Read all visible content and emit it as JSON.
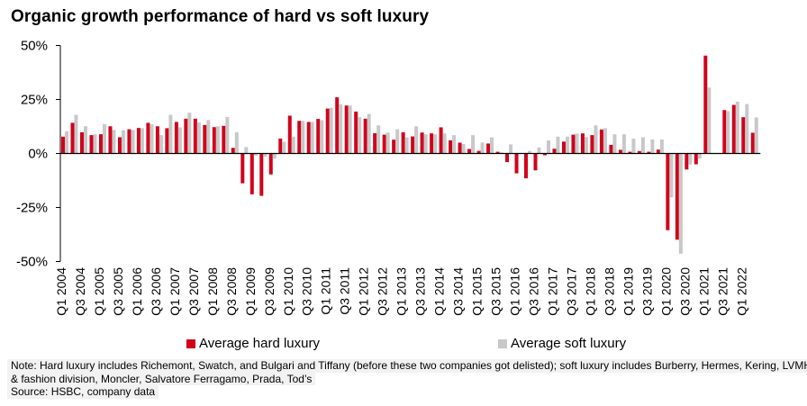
{
  "title": "Organic growth performance of hard vs soft luxury",
  "chart_data": {
    "type": "bar",
    "title": "Organic growth performance of hard vs soft luxury",
    "xlabel": "",
    "ylabel": "",
    "ylim": [
      -50,
      50
    ],
    "y_ticks": [
      50,
      25,
      0,
      -25,
      -50
    ],
    "y_tick_labels": [
      "50%",
      "25%",
      "0%",
      "-25%",
      "-50%"
    ],
    "y_unit": "%",
    "grid": false,
    "legend_position": "bottom",
    "categories": [
      "Q1 2004",
      "Q2 2004",
      "Q3 2004",
      "Q4 2004",
      "Q1 2005",
      "Q2 2005",
      "Q3 2005",
      "Q4 2005",
      "Q1 2006",
      "Q2 2006",
      "Q3 2006",
      "Q4 2006",
      "Q1 2007",
      "Q2 2007",
      "Q3 2007",
      "Q4 2007",
      "Q1 2008",
      "Q2 2008",
      "Q3 2008",
      "Q4 2008",
      "Q1 2009",
      "Q2 2009",
      "Q3 2009",
      "Q4 2009",
      "Q1 2010",
      "Q2 2010",
      "Q3 2010",
      "Q4 2010",
      "Q1 2011",
      "Q2 2011",
      "Q3 2011",
      "Q4 2011",
      "Q1 2012",
      "Q2 2012",
      "Q3 2012",
      "Q4 2012",
      "Q1 2013",
      "Q2 2013",
      "Q3 2013",
      "Q4 2013",
      "Q1 2014",
      "Q2 2014",
      "Q3 2014",
      "Q4 2014",
      "Q1 2015",
      "Q2 2015",
      "Q3 2015",
      "Q4 2015",
      "Q1 2016",
      "Q2 2016",
      "Q3 2016",
      "Q4 2016",
      "Q1 2017",
      "Q2 2017",
      "Q3 2017",
      "Q4 2017",
      "Q1 2018",
      "Q2 2018",
      "Q3 2018",
      "Q4 2018",
      "Q1 2019",
      "Q2 2019",
      "Q3 2019",
      "Q4 2019",
      "Q1 2020",
      "Q2 2020",
      "Q3 2020",
      "Q4 2020",
      "Q1 2021",
      "Q2 2021",
      "Q3 2021",
      "Q4 2021",
      "Q1 2022",
      "Q2 2022"
    ],
    "x_tick_labels": [
      "Q1 2004",
      "Q3 2004",
      "Q1 2005",
      "Q3 2005",
      "Q1 2006",
      "Q3 2006",
      "Q1 2007",
      "Q3 2007",
      "Q1 2008",
      "Q3 2008",
      "Q1 2009",
      "Q3 2009",
      "Q1 2010",
      "Q3 2010",
      "Q1 2011",
      "Q3 2011",
      "Q1 2012",
      "Q3 2012",
      "Q1 2013",
      "Q3 2013",
      "Q1 2014",
      "Q3 2014",
      "Q1 2015",
      "Q3 2015",
      "Q1 2016",
      "Q3 2016",
      "Q1 2017",
      "Q3 2017",
      "Q1 2018",
      "Q3 2018",
      "Q1 2019",
      "Q3 2019",
      "Q1 2020",
      "Q3 2020",
      "Q1 2021",
      "Q3 2021",
      "Q1 2022"
    ],
    "series": [
      {
        "name": "Average hard luxury",
        "color": "#d0021b",
        "values": [
          7.8,
          14.2,
          9.8,
          8.5,
          8.9,
          12.6,
          7.5,
          11.2,
          11.8,
          14.2,
          12.6,
          11.7,
          14.6,
          16.1,
          16.1,
          13.2,
          12.2,
          12.8,
          2.6,
          -13.8,
          -18.9,
          -19.6,
          -9.7,
          6.9,
          17.5,
          15.1,
          14.6,
          16.0,
          20.8,
          26.0,
          22.2,
          19.4,
          16.1,
          9.4,
          8.7,
          6.4,
          9.8,
          7.9,
          9.7,
          9.3,
          12.1,
          6.1,
          5.0,
          2.1,
          1.2,
          4.6,
          0.8,
          -4.0,
          -9.2,
          -11.5,
          -7.8,
          -0.8,
          2.2,
          5.5,
          8.7,
          9.3,
          8.5,
          11.1,
          4.0,
          1.7,
          0.8,
          1.1,
          0.8,
          1.8,
          -35.5,
          -39.9,
          -7.4,
          -5.0,
          45.3,
          null,
          20.1,
          22.5,
          16.8,
          9.6
        ]
      },
      {
        "name": "Average soft luxury",
        "color": "#c8c8c8",
        "values": [
          10.3,
          17.9,
          12.6,
          8.9,
          13.6,
          10.9,
          10.8,
          10.9,
          11.7,
          13.5,
          8.5,
          17.9,
          12.1,
          18.9,
          14.4,
          15.5,
          12.6,
          16.9,
          9.8,
          3.0,
          -1.0,
          -1.5,
          -2.4,
          5.4,
          7.8,
          15.1,
          14.6,
          15.4,
          21.1,
          22.8,
          22.2,
          16.8,
          18.3,
          13.0,
          9.7,
          11.2,
          7.5,
          12.6,
          8.9,
          8.9,
          9.3,
          8.5,
          4.4,
          8.5,
          5.1,
          7.5,
          0.5,
          4.2,
          0.0,
          1.2,
          2.8,
          6.0,
          7.8,
          7.8,
          9.2,
          7.6,
          13.0,
          11.7,
          8.9,
          8.9,
          6.9,
          7.5,
          6.5,
          6.5,
          -20.3,
          -46.4,
          -5.1,
          -2.4,
          30.5,
          null,
          19.6,
          24.0,
          22.9,
          16.7
        ]
      }
    ]
  },
  "legend": {
    "hard_label": "Average hard luxury",
    "soft_label": "Average soft luxury"
  },
  "footer": {
    "note_line1": "Note: Hard luxury includes Richemont, Swatch, and Bulgari and Tiffany (before these two companies got delisted); soft luxury includes Burberry, Hermes, Kering, LVMH leather",
    "note_line2": "& fashion division, Moncler, Salvatore Ferragamo, Prada, Tod’s",
    "source": "Source: HSBC, company data"
  }
}
